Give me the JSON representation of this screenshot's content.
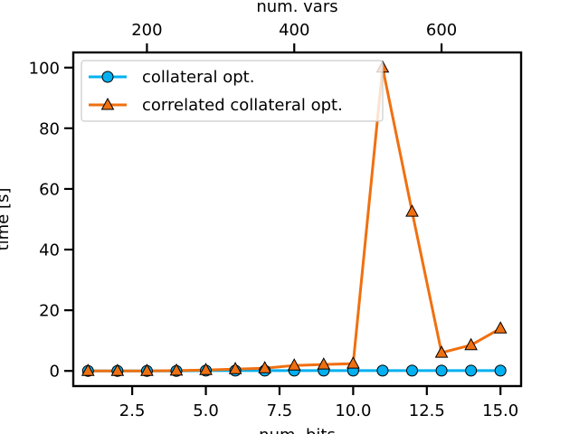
{
  "chart_data": {
    "type": "line",
    "xlabel": "num. bits",
    "ylabel": "time [s]",
    "top_xlabel": "num. vars",
    "xlim": [
      0.5,
      15.7
    ],
    "ylim": [
      -5,
      105
    ],
    "top_xlim": [
      100,
      708
    ],
    "x_ticks": [
      2.5,
      5.0,
      7.5,
      10.0,
      12.5,
      15.0
    ],
    "x_tick_labels": [
      "2.5",
      "5.0",
      "7.5",
      "10.0",
      "12.5",
      "15.0"
    ],
    "y_ticks": [
      0,
      20,
      40,
      60,
      80,
      100
    ],
    "y_tick_labels": [
      "0",
      "20",
      "40",
      "60",
      "80",
      "100"
    ],
    "top_x_ticks": [
      200,
      400,
      600
    ],
    "top_x_tick_labels": [
      "200",
      "400",
      "600"
    ],
    "grid": false,
    "legend_position": "top-left",
    "x": [
      1,
      2,
      3,
      4,
      5,
      6,
      7,
      8,
      9,
      10,
      11,
      12,
      13,
      14,
      15
    ],
    "series": [
      {
        "name": "collateral opt.",
        "marker": "circle",
        "color": "#00b0f0",
        "values": [
          0,
          0,
          0,
          0,
          0.1,
          0.1,
          0.1,
          0.1,
          0.1,
          0.1,
          0.1,
          0.1,
          0.1,
          0.1,
          0.1
        ]
      },
      {
        "name": "correlated collateral opt.",
        "marker": "triangle",
        "color": "#f07010",
        "values": [
          0,
          0,
          0,
          0.1,
          0.3,
          0.6,
          0.9,
          1.8,
          2.1,
          2.4,
          100,
          52.5,
          6,
          8.5,
          14
        ]
      }
    ]
  }
}
